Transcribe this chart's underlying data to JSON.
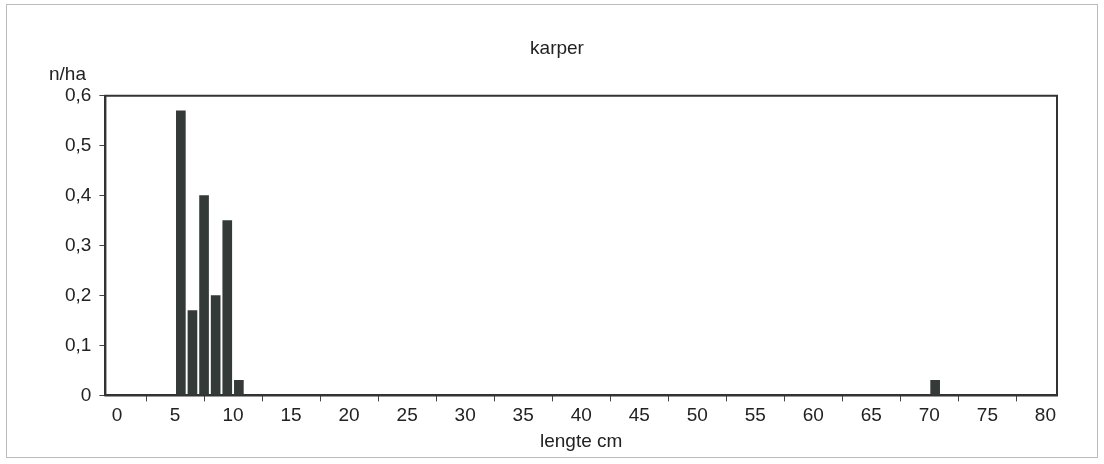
{
  "chart_data": {
    "type": "bar",
    "title": "karper",
    "xlabel": "lengte cm",
    "ylabel": "n/ha",
    "x": [
      5.5,
      6.5,
      7.5,
      8.5,
      9.5,
      10.5,
      70.5
    ],
    "values": [
      0.57,
      0.17,
      0.4,
      0.2,
      0.35,
      0.03,
      0.03
    ],
    "color": "#333a38",
    "xlim": [
      -1,
      81
    ],
    "xticks": [
      0,
      5,
      10,
      15,
      20,
      25,
      30,
      35,
      40,
      45,
      50,
      55,
      60,
      65,
      70,
      75,
      80
    ],
    "ylim": [
      0,
      0.6
    ],
    "yticks": [
      0,
      {
        "value": 0.1,
        "label": "0,1"
      },
      {
        "value": 0.2,
        "label": "0,2"
      },
      {
        "value": 0.3,
        "label": "0,3"
      },
      {
        "value": 0.4,
        "label": "0,4"
      },
      {
        "value": 0.5,
        "label": "0,5"
      },
      {
        "value": 0.6,
        "label": "0,6"
      }
    ],
    "grid": false,
    "legend": false
  }
}
